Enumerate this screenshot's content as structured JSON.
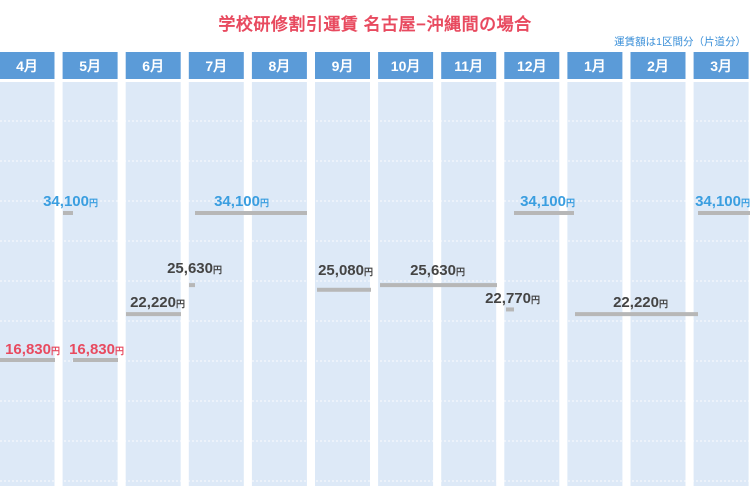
{
  "title": "学校研修割引運賃 名古屋−沖縄間の場合",
  "note": "運賃額は1区間分（片道分）",
  "chart_data": {
    "type": "bar",
    "title": "学校研修割引運賃 名古屋−沖縄間の場合",
    "note": "運賃額は1区間分（片道分）",
    "unit": "円",
    "categories": [
      "4月",
      "5月",
      "6月",
      "7月",
      "8月",
      "9月",
      "10月",
      "11月",
      "12月",
      "1月",
      "2月",
      "3月"
    ],
    "segments": [
      {
        "period": "4月上旬",
        "value": 16830
      },
      {
        "period": "4月末",
        "value": 34100
      },
      {
        "period": "5月",
        "value": 16830
      },
      {
        "period": "6月",
        "value": 22220
      },
      {
        "period": "6月末",
        "value": 25630
      },
      {
        "period": "7月下旬〜8月",
        "value": 34100
      },
      {
        "period": "9月",
        "value": 25080
      },
      {
        "period": "10月〜11月",
        "value": 25630
      },
      {
        "period": "12月上旬",
        "value": 22770
      },
      {
        "period": "12月下旬",
        "value": 34100
      },
      {
        "period": "1月〜2月",
        "value": 22220
      },
      {
        "period": "3月",
        "value": 34100
      }
    ],
    "labels": [
      {
        "text": "34,100",
        "value": 34100
      },
      {
        "text": "34,100",
        "value": 34100
      },
      {
        "text": "34,100",
        "value": 34100
      },
      {
        "text": "34,100",
        "value": 34100
      },
      {
        "text": "25,630",
        "value": 25630
      },
      {
        "text": "25,080",
        "value": 25080
      },
      {
        "text": "25,630",
        "value": 25630
      },
      {
        "text": "22,220",
        "value": 22220
      },
      {
        "text": "22,770",
        "value": 22770
      },
      {
        "text": "22,220",
        "value": 22220
      },
      {
        "text": "16,830",
        "value": 16830
      },
      {
        "text": "16,830",
        "value": 16830
      }
    ],
    "colors": {
      "header": "#5b9bd8",
      "column": "#dde9f7",
      "bar": "#b7b7b7",
      "high": "#3a9ee0",
      "mid": "#444444",
      "low": "#e84a5f"
    },
    "ylim": [
      10000,
      40000
    ]
  }
}
